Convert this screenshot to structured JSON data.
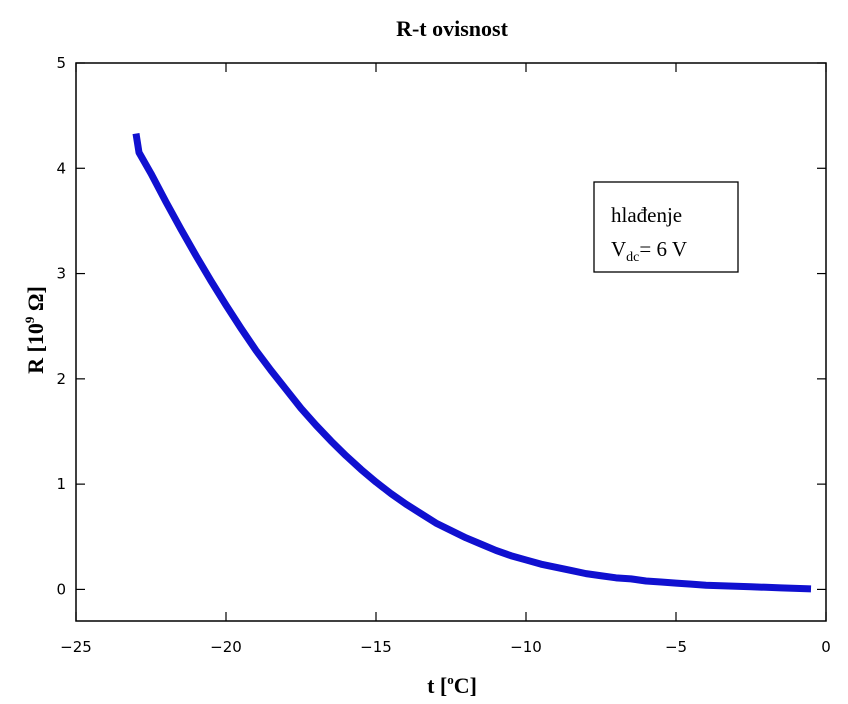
{
  "chart_data": {
    "type": "line",
    "title": "R-t ovisnost",
    "xlabel": {
      "main": "t [",
      "sup": "o",
      "tail": "C]"
    },
    "ylabel": {
      "main": "R [10",
      "sup": "9",
      "tail": " Ω]"
    },
    "xlim": [
      -25,
      0
    ],
    "ylim": [
      -0.3,
      5
    ],
    "xticks": [
      -25,
      -20,
      -15,
      -10,
      -5,
      0
    ],
    "xtick_labels": [
      "−25",
      "−20",
      "−15",
      "−10",
      "−5",
      "0"
    ],
    "yticks": [
      0,
      1,
      2,
      3,
      4,
      5
    ],
    "ytick_labels": [
      "0",
      "1",
      "2",
      "3",
      "4",
      "5"
    ],
    "grid": false,
    "series_color": "#1010d0",
    "x": [
      -23.0,
      -22.9,
      -22.5,
      -22.0,
      -21.5,
      -21.0,
      -20.5,
      -20.0,
      -19.5,
      -19.0,
      -18.5,
      -18.0,
      -17.5,
      -17.0,
      -16.5,
      -16.0,
      -15.5,
      -15.0,
      -14.5,
      -14.0,
      -13.5,
      -13.0,
      -12.5,
      -12.0,
      -11.5,
      -11.0,
      -10.5,
      -10.0,
      -9.5,
      -9.0,
      -8.5,
      -8.0,
      -7.5,
      -7.0,
      -6.5,
      -6.0,
      -5.5,
      -5.0,
      -4.5,
      -4.0,
      -3.5,
      -3.0,
      -2.5,
      -2.0,
      -1.5,
      -1.0,
      -0.5
    ],
    "y": [
      4.33,
      4.15,
      3.95,
      3.68,
      3.42,
      3.17,
      2.93,
      2.7,
      2.48,
      2.27,
      2.08,
      1.9,
      1.72,
      1.56,
      1.41,
      1.27,
      1.14,
      1.02,
      0.91,
      0.81,
      0.72,
      0.63,
      0.56,
      0.49,
      0.43,
      0.37,
      0.32,
      0.28,
      0.24,
      0.21,
      0.18,
      0.15,
      0.13,
      0.11,
      0.1,
      0.08,
      0.07,
      0.06,
      0.05,
      0.04,
      0.035,
      0.03,
      0.025,
      0.02,
      0.015,
      0.01,
      0.005
    ],
    "annotation": {
      "line1": "hlađenje",
      "line2_main": "V",
      "line2_sub": "dc",
      "line2_tail": "= 6 V"
    }
  }
}
